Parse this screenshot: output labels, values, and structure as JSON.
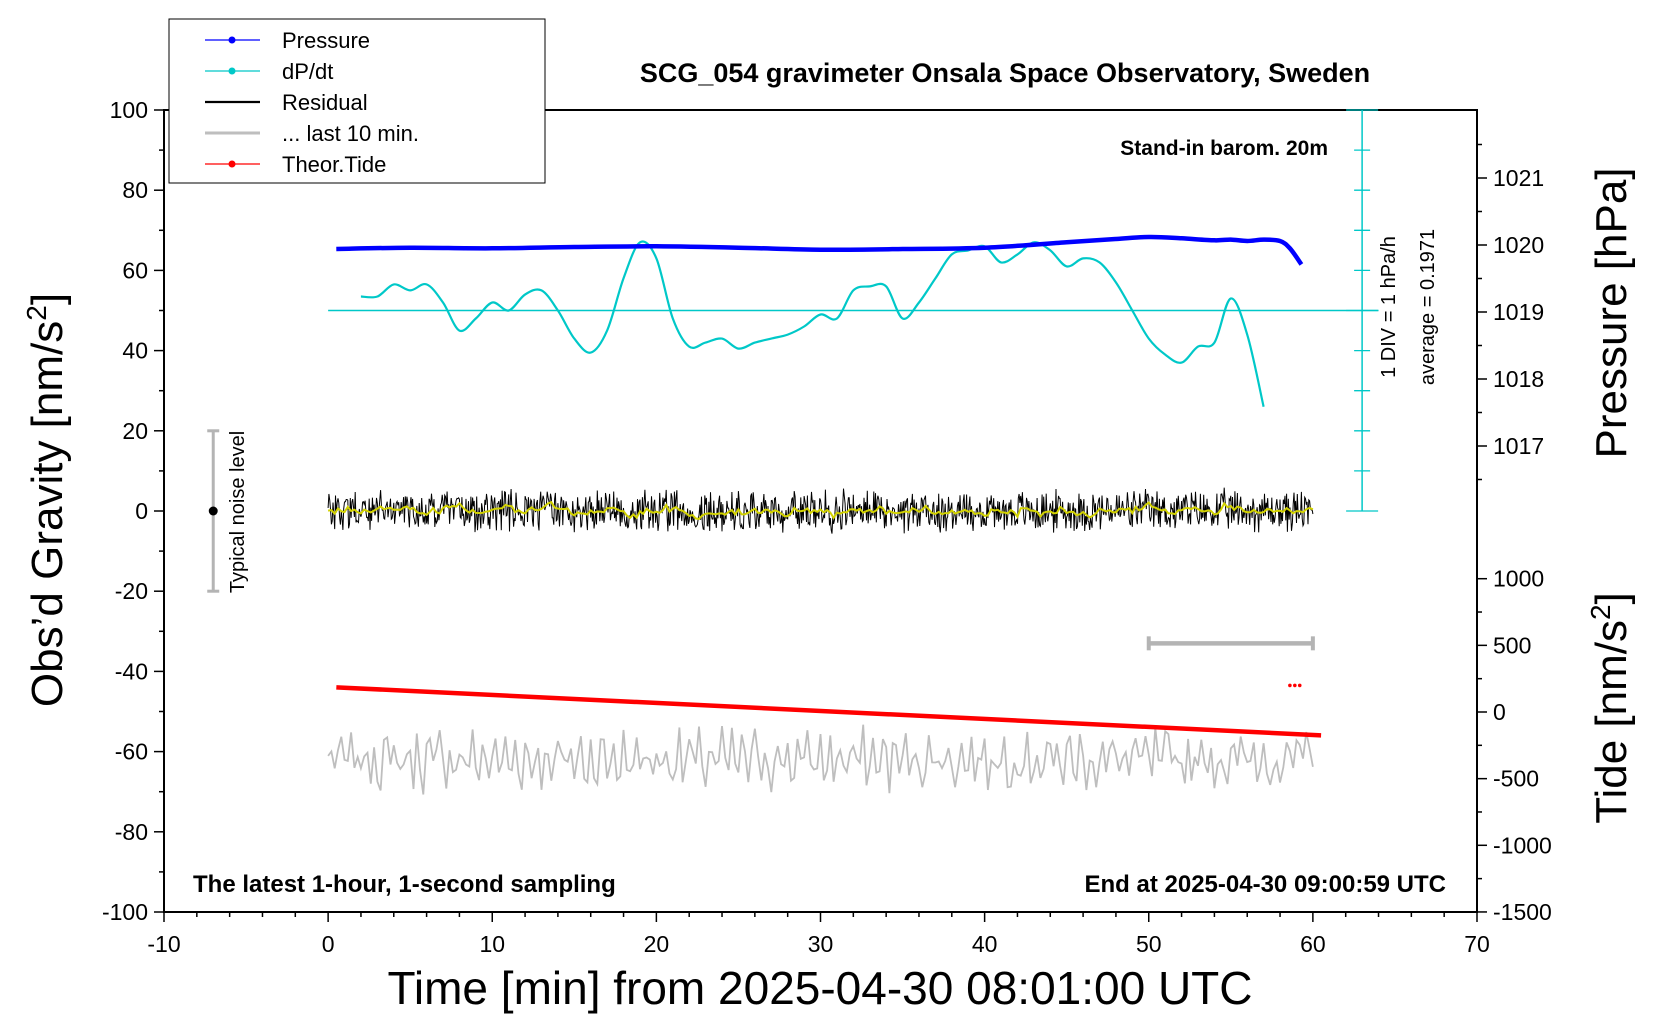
{
  "title": "SCG_054 gravimeter Onsala Space Observatory, Sweden",
  "annotations": {
    "stand_in": "Stand-in barom. 20m",
    "latest": "The latest 1-hour, 1-second sampling",
    "end_at": "End at 2025-04-30 09:00:59 UTC",
    "div": "1 DIV = 1 hPa/h",
    "average": "average = 0.1971",
    "noise": "Typical noise level"
  },
  "axes": {
    "xlabel": "Time [min] from 2025-04-30 08:01:00 UTC",
    "ylabel_left": "Obs’d Gravity [nm/s",
    "ylabel_left_sup": "2",
    "ylabel_left_end": "]",
    "ylabel_pressure": "Pressure [hPa]",
    "ylabel_tide": "Tide [nm/s",
    "ylabel_tide_sup": "2",
    "ylabel_tide_end": "]"
  },
  "legend": [
    {
      "label": "Pressure",
      "color": "#0000ff",
      "marker": true
    },
    {
      "label": "dP/dt",
      "color": "#00c8c8",
      "marker": true
    },
    {
      "label": "Residual",
      "color": "#000000",
      "marker": false
    },
    {
      "label": "... last 10 min.",
      "color": "#bebebe",
      "marker": false
    },
    {
      "label": "Theor.Tide",
      "color": "#ff0000",
      "marker": true
    }
  ],
  "colors": {
    "pressure": "#0000ff",
    "dpdt": "#00c8c8",
    "residual": "#000000",
    "residual_smooth": "#d2d200",
    "last10": "#bebebe",
    "tide": "#ff0000"
  },
  "chart_data": {
    "type": "line",
    "title": "SCG_054 gravimeter Onsala Space Observatory, Sweden",
    "xlabel": "Time [min] from 2025-04-30 08:01:00 UTC",
    "ylabel": "Obs’d Gravity [nm/s2]",
    "xlim": [
      -10,
      70
    ],
    "ylim": [
      -100,
      100
    ],
    "x_ticks": [
      -10,
      0,
      10,
      20,
      30,
      40,
      50,
      60,
      70
    ],
    "y_ticks": [
      -100,
      -80,
      -60,
      -40,
      -20,
      0,
      20,
      40,
      60,
      80,
      100
    ],
    "grid": false,
    "legend_position": "top-left",
    "pressure_axis": {
      "label": "Pressure [hPa]",
      "ticks": [
        1017,
        1018,
        1019,
        1020,
        1021
      ]
    },
    "tide_axis": {
      "label": "Tide [nm/s2]",
      "ticks": [
        -1500,
        -1000,
        -500,
        0,
        500,
        1000
      ]
    },
    "noise_level": {
      "x": -7,
      "y": 0,
      "ylow": -20,
      "yhigh": 20
    },
    "last10_bracket": {
      "x0": 50,
      "x1": 60,
      "y": -33
    },
    "series": [
      {
        "name": "Pressure",
        "axis": "pressure",
        "x": [
          0.5,
          5,
          10,
          15,
          20,
          25,
          30,
          35,
          40,
          45,
          48,
          50,
          52,
          54,
          55,
          56,
          57,
          58,
          58.6,
          59.3
        ],
        "y": [
          1019.94,
          1019.96,
          1019.95,
          1019.97,
          1019.98,
          1019.96,
          1019.93,
          1019.94,
          1019.96,
          1020.04,
          1020.09,
          1020.12,
          1020.1,
          1020.07,
          1020.08,
          1020.06,
          1020.08,
          1020.06,
          1019.95,
          1019.71
        ]
      },
      {
        "name": "dP/dt",
        "axis": "left",
        "x": [
          2,
          3,
          4,
          5,
          6,
          7,
          8,
          9,
          10,
          11,
          12,
          13,
          14,
          15,
          16,
          17,
          18,
          19,
          20,
          21,
          22,
          23,
          24,
          25,
          26,
          27,
          28,
          29,
          30,
          31,
          32,
          33,
          34,
          35,
          36,
          37,
          38,
          39,
          40,
          41,
          42,
          43,
          44,
          45,
          46,
          47,
          48,
          49,
          50,
          51,
          52,
          53,
          54,
          55,
          56,
          57
        ],
        "y": [
          53.5,
          53.5,
          56.5,
          55,
          56.5,
          52,
          45,
          48,
          52,
          50,
          54,
          55,
          50,
          43,
          39.5,
          45,
          58,
          67,
          63,
          48,
          41,
          42,
          43,
          40.5,
          42,
          43,
          44,
          46,
          49,
          48,
          55,
          56,
          56,
          48,
          52,
          58,
          64,
          65,
          66,
          62,
          64,
          67,
          65,
          61,
          63,
          62,
          57,
          50,
          43,
          39,
          37,
          41,
          42,
          53,
          44,
          26
        ]
      },
      {
        "name": "Residual",
        "axis": "left",
        "noise_amplitude": 5,
        "x_range": [
          0,
          60
        ],
        "y_center": 0
      },
      {
        "name": "... last 10 min.",
        "axis": "left",
        "noise_amplitude": 6,
        "x_range": [
          0,
          60
        ],
        "y_center": -62
      },
      {
        "name": "Theor.Tide",
        "axis": "tide",
        "x": [
          0.5,
          60.5
        ],
        "y": [
          185,
          -175
        ]
      }
    ]
  }
}
